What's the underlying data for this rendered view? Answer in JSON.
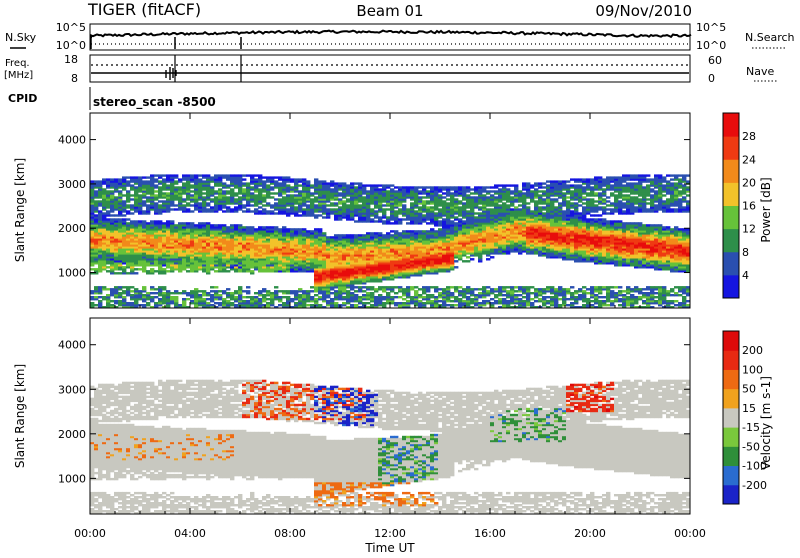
{
  "header": {
    "radar": "TIGER (fitACF)",
    "beam": "Beam 01",
    "date": "09/Nov/2010",
    "cpid_label": "CPID",
    "cpid_value": "stereo_scan -8500"
  },
  "strip_nsky": {
    "left_label": "N.Sky",
    "right_label": "N.Search",
    "left_ticks": [
      "10^5",
      "10^0"
    ],
    "right_ticks": [
      "10^5",
      "10^0"
    ]
  },
  "strip_freq": {
    "left_label": "Freq.",
    "left_unit": "[MHz]",
    "right_label": "Nave",
    "left_ticks": [
      "18",
      "8"
    ],
    "right_ticks": [
      "60",
      "0"
    ],
    "freq_value_mhz": 12
  },
  "chart_data": [
    {
      "type": "heatmap",
      "name": "power-panel",
      "ylabel": "Slant Range [km]",
      "ylim": [
        200,
        4600
      ],
      "yticks": [
        "1000",
        "2000",
        "3000",
        "4000"
      ],
      "xlim": [
        0,
        24
      ],
      "xticks": [
        "00:00",
        "04:00",
        "08:00",
        "12:00",
        "16:00",
        "20:00",
        "00:00"
      ],
      "colorbar": {
        "label": "Power [dB]",
        "ticks": [
          "4",
          "8",
          "12",
          "16",
          "20",
          "24",
          "28"
        ],
        "colors": [
          "#1515e0",
          "#2a4fb0",
          "#2e8f4a",
          "#66c23a",
          "#f2c22a",
          "#f28a1a",
          "#ef3a12",
          "#e80c0c"
        ]
      }
    },
    {
      "type": "heatmap",
      "name": "velocity-panel",
      "ylabel": "Slant Range [km]",
      "ylim": [
        200,
        4600
      ],
      "yticks": [
        "1000",
        "2000",
        "3000",
        "4000"
      ],
      "xlim": [
        0,
        24
      ],
      "xticks": [
        "00:00",
        "04:00",
        "08:00",
        "12:00",
        "16:00",
        "20:00",
        "00:00"
      ],
      "xlabel": "Time UT",
      "colorbar": {
        "label": "Velocity [m s-1]",
        "ticks": [
          "200",
          "100",
          "50",
          "15",
          "-15",
          "-50",
          "-100",
          "-200"
        ],
        "colors": [
          "#1a23c8",
          "#2a6cd0",
          "#2f8f3a",
          "#7ac83c",
          "#c8c8c0",
          "#f0a21e",
          "#ee6a12",
          "#e82a12",
          "#dd0a0a"
        ]
      }
    }
  ]
}
